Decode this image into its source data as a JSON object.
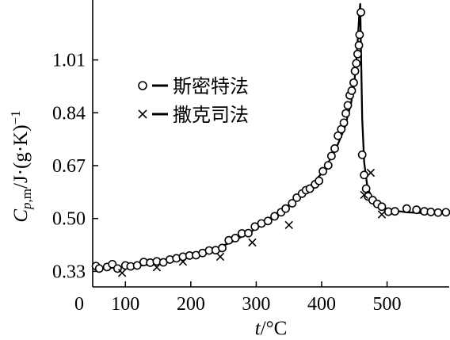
{
  "chart_data": {
    "type": "scatter",
    "xlabel": "t/°C",
    "ylabel": "C_p,m/J·(g·K)⁻¹",
    "xlim": [
      50,
      595
    ],
    "ylim": [
      0.28,
      1.19
    ],
    "x_ticks": [
      {
        "value": 100,
        "label": "100"
      },
      {
        "value": 200,
        "label": "200"
      },
      {
        "value": 300,
        "label": "300"
      },
      {
        "value": 400,
        "label": "400"
      },
      {
        "value": 500,
        "label": "500"
      }
    ],
    "x_origin_label": "0",
    "y_ticks": [
      {
        "value": 0.33,
        "label": "0.33"
      },
      {
        "value": 0.5,
        "label": "0.50"
      },
      {
        "value": 0.67,
        "label": "0.67"
      },
      {
        "value": 0.84,
        "label": "0.84"
      },
      {
        "value": 1.01,
        "label": "1.01"
      }
    ],
    "legend": [
      {
        "marker": "circle",
        "label": "斯密特法"
      },
      {
        "marker": "cross",
        "label": "撒克司法"
      }
    ],
    "series": [
      {
        "name": "斯密特法",
        "marker": "circle",
        "points": [
          [
            55,
            0.347
          ],
          [
            60,
            0.339
          ],
          [
            72,
            0.344
          ],
          [
            80,
            0.353
          ],
          [
            88,
            0.339
          ],
          [
            100,
            0.349
          ],
          [
            108,
            0.346
          ],
          [
            118,
            0.349
          ],
          [
            128,
            0.36
          ],
          [
            138,
            0.358
          ],
          [
            148,
            0.362
          ],
          [
            158,
            0.359
          ],
          [
            168,
            0.368
          ],
          [
            178,
            0.372
          ],
          [
            188,
            0.377
          ],
          [
            198,
            0.381
          ],
          [
            208,
            0.382
          ],
          [
            218,
            0.389
          ],
          [
            228,
            0.397
          ],
          [
            238,
            0.398
          ],
          [
            248,
            0.405
          ],
          [
            258,
            0.43
          ],
          [
            268,
            0.437
          ],
          [
            278,
            0.452
          ],
          [
            288,
            0.453
          ],
          [
            298,
            0.474
          ],
          [
            308,
            0.484
          ],
          [
            318,
            0.492
          ],
          [
            328,
            0.507
          ],
          [
            338,
            0.52
          ],
          [
            345,
            0.532
          ],
          [
            355,
            0.549
          ],
          [
            362,
            0.567
          ],
          [
            370,
            0.58
          ],
          [
            376,
            0.591
          ],
          [
            382,
            0.596
          ],
          [
            390,
            0.61
          ],
          [
            396,
            0.621
          ],
          [
            402,
            0.652
          ],
          [
            410,
            0.671
          ],
          [
            415,
            0.701
          ],
          [
            420,
            0.725
          ],
          [
            425,
            0.766
          ],
          [
            430,
            0.787
          ],
          [
            434,
            0.808
          ],
          [
            437,
            0.838
          ],
          [
            440,
            0.864
          ],
          [
            443,
            0.896
          ],
          [
            446,
            0.911
          ],
          [
            449,
            0.937
          ],
          [
            451,
            0.974
          ],
          [
            453,
            0.999
          ],
          [
            455,
            1.029
          ],
          [
            457,
            1.057
          ],
          [
            458,
            1.091
          ],
          [
            460,
            1.163
          ],
          [
            462,
            0.705
          ],
          [
            465,
            0.64
          ],
          [
            468,
            0.596
          ],
          [
            471,
            0.571
          ],
          [
            478,
            0.559
          ],
          [
            485,
            0.547
          ],
          [
            492,
            0.538
          ],
          [
            502,
            0.522
          ],
          [
            512,
            0.523
          ],
          [
            530,
            0.532
          ],
          [
            545,
            0.528
          ],
          [
            557,
            0.523
          ],
          [
            567,
            0.521
          ],
          [
            578,
            0.519
          ],
          [
            590,
            0.52
          ]
        ]
      },
      {
        "name": "撒克司法",
        "marker": "cross",
        "points": [
          [
            95,
            0.325
          ],
          [
            148,
            0.343
          ],
          [
            188,
            0.361
          ],
          [
            245,
            0.377
          ],
          [
            294,
            0.423
          ],
          [
            350,
            0.479
          ],
          [
            465,
            0.576
          ],
          [
            475,
            0.647
          ],
          [
            492,
            0.513
          ]
        ]
      },
      {
        "name": "fit",
        "marker": "line",
        "points": [
          [
            50,
            0.339
          ],
          [
            80,
            0.342
          ],
          [
            110,
            0.346
          ],
          [
            140,
            0.353
          ],
          [
            170,
            0.364
          ],
          [
            200,
            0.377
          ],
          [
            230,
            0.396
          ],
          [
            260,
            0.422
          ],
          [
            290,
            0.455
          ],
          [
            320,
            0.495
          ],
          [
            350,
            0.543
          ],
          [
            380,
            0.598
          ],
          [
            400,
            0.645
          ],
          [
            420,
            0.715
          ],
          [
            435,
            0.79
          ],
          [
            445,
            0.87
          ],
          [
            450,
            0.94
          ],
          [
            453,
            1.01
          ],
          [
            456,
            1.1
          ],
          [
            458,
            1.17
          ],
          [
            459,
            1.19
          ],
          [
            460,
            1.06
          ],
          [
            462,
            0.82
          ],
          [
            465,
            0.68
          ],
          [
            470,
            0.6
          ],
          [
            478,
            0.56
          ],
          [
            490,
            0.538
          ],
          [
            505,
            0.527
          ],
          [
            530,
            0.52
          ],
          [
            560,
            0.517
          ],
          [
            595,
            0.516
          ]
        ]
      }
    ]
  }
}
